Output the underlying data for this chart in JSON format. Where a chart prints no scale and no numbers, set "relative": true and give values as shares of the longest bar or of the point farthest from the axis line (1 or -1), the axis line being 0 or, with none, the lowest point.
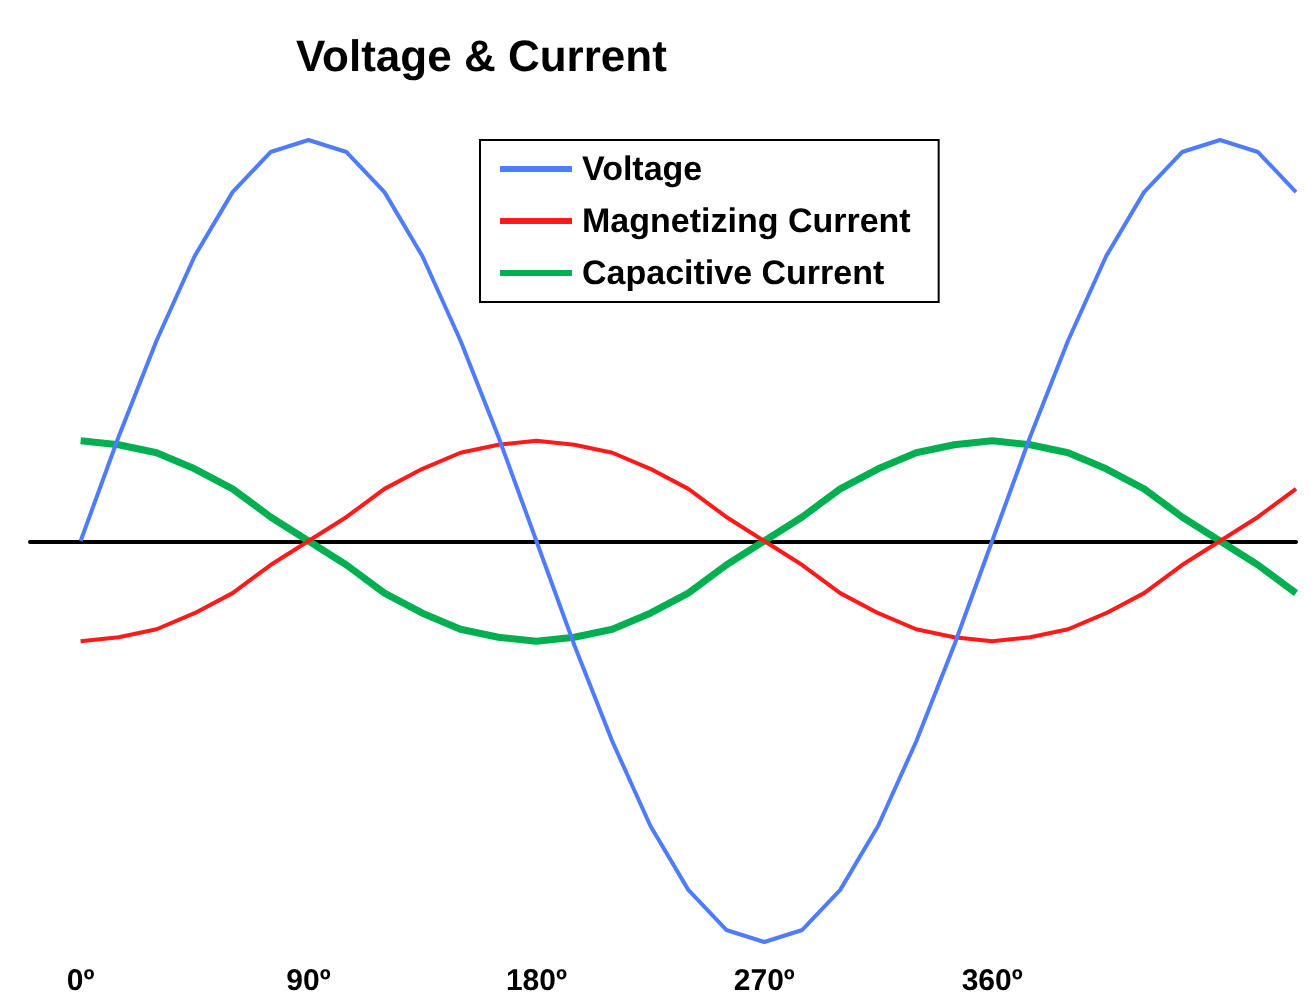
{
  "chart_data": {
    "type": "line",
    "title": "Voltage & Current",
    "relative": true,
    "legend": "top right",
    "grid": false,
    "marker": "none",
    "line_style": "solid",
    "x": [
      0,
      15,
      30,
      45,
      60,
      75,
      90,
      105,
      120,
      135,
      150,
      165,
      180,
      195,
      210,
      225,
      240,
      255,
      270,
      285,
      300,
      315,
      330,
      345,
      360,
      375,
      390,
      405,
      420,
      435,
      450,
      465,
      480
    ],
    "xlim": [
      -20,
      480
    ],
    "xticks": [
      {
        "value": 0,
        "label": "0º"
      },
      {
        "value": 90,
        "label": "90º"
      },
      {
        "value": 180,
        "label": "180º"
      },
      {
        "value": 270,
        "label": "270º"
      },
      {
        "value": 360,
        "label": "360º"
      }
    ],
    "series": [
      {
        "name": "Voltage",
        "color": "#4f7cff",
        "values": [
          0,
          0.26,
          0.5,
          0.71,
          0.87,
          0.97,
          1,
          0.97,
          0.87,
          0.71,
          0.5,
          0.26,
          0,
          -0.26,
          -0.5,
          -0.71,
          -0.87,
          -0.97,
          -1,
          -0.97,
          -0.87,
          -0.71,
          -0.5,
          -0.26,
          0,
          0.26,
          0.5,
          0.71,
          0.87,
          0.97,
          1,
          0.97,
          0.87
        ]
      },
      {
        "name": "Magnetizing Current",
        "color": "#ff1a1a",
        "values": [
          -0.25,
          -0.24,
          -0.22,
          -0.18,
          -0.13,
          -0.06,
          0,
          0.06,
          0.13,
          0.18,
          0.22,
          0.24,
          0.25,
          0.24,
          0.22,
          0.18,
          0.13,
          0.06,
          0,
          -0.06,
          -0.13,
          -0.18,
          -0.22,
          -0.24,
          -0.25,
          -0.24,
          -0.22,
          -0.18,
          -0.13,
          -0.06,
          0,
          0.06,
          0.13
        ]
      },
      {
        "name": "Capacitive Current",
        "color": "#00b050",
        "values": [
          0.25,
          0.24,
          0.22,
          0.18,
          0.13,
          0.06,
          0,
          -0.06,
          -0.13,
          -0.18,
          -0.22,
          -0.24,
          -0.25,
          -0.24,
          -0.22,
          -0.18,
          -0.13,
          -0.06,
          0,
          0.06,
          0.13,
          0.18,
          0.22,
          0.24,
          0.25,
          0.24,
          0.22,
          0.18,
          0.13,
          0.06,
          0,
          -0.06,
          -0.13
        ]
      }
    ]
  }
}
